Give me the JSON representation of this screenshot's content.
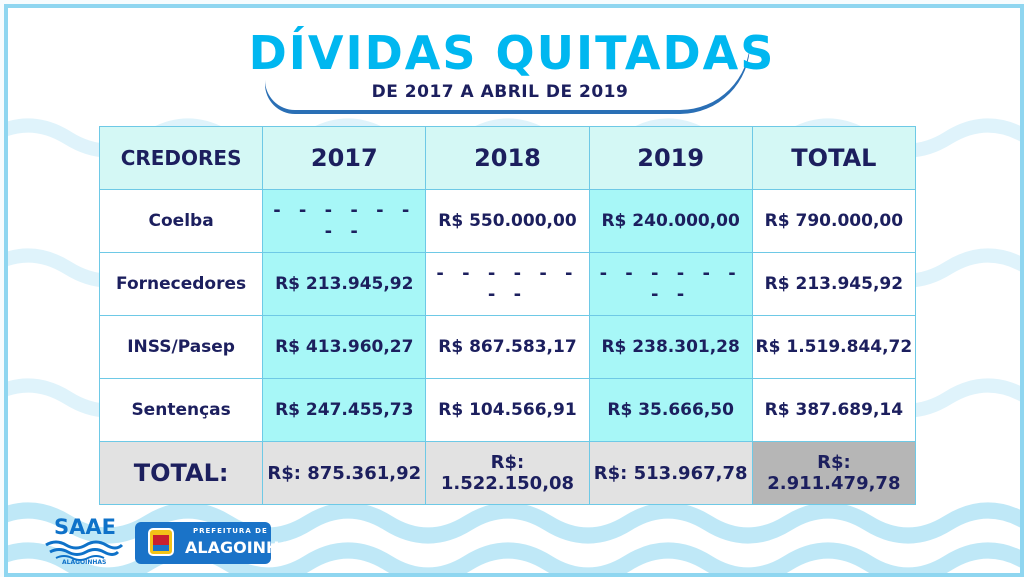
{
  "title": "DÍVIDAS QUITADAS",
  "subtitle": "DE 2017 A ABRIL DE 2019",
  "table": {
    "headers": [
      "CREDORES",
      "2017",
      "2018",
      "2019",
      "TOTAL"
    ],
    "rows": [
      {
        "name": "Coelba",
        "y2017": "- - - - - - - -",
        "y2018": "R$ 550.000,00",
        "y2019": "R$ 240.000,00",
        "total": "R$ 790.000,00"
      },
      {
        "name": "Fornecedores",
        "y2017": "R$ 213.945,92",
        "y2018": "- - - - - - - -",
        "y2019": "- - - - - - - -",
        "total": "R$ 213.945,92"
      },
      {
        "name": "INSS/Pasep",
        "y2017": "R$ 413.960,27",
        "y2018": "R$ 867.583,17",
        "y2019": "R$ 238.301,28",
        "total": "R$ 1.519.844,72"
      },
      {
        "name": "Sentenças",
        "y2017": "R$ 247.455,73",
        "y2018": "R$ 104.566,91",
        "y2019": "R$ 35.666,50",
        "total": "R$ 387.689,14"
      }
    ],
    "totals": {
      "name": "TOTAL:",
      "y2017": "R$: 875.361,92",
      "y2018": "R$: 1.522.150,08",
      "y2019": "R$: 513.967,78",
      "total": "R$: 2.911.479,78"
    }
  },
  "logos": {
    "saae": "SAAE",
    "saae_sub": "ALAGOINHAS",
    "prefeitura_small": "PREFEITURA DE",
    "prefeitura_big": "ALAGOINHAS"
  },
  "colors": {
    "accent": "#00b7f0",
    "navy": "#1c1f5e",
    "cell_highlight": "#a7f7f7",
    "header_bg": "#d4f8f5"
  }
}
